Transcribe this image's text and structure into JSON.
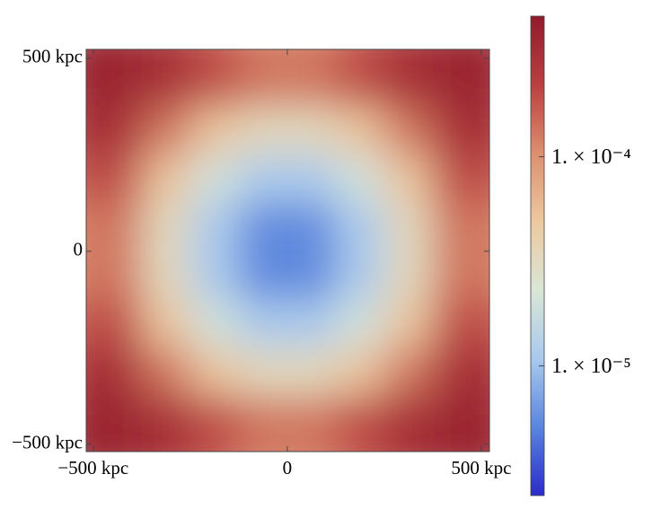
{
  "chart_data": {
    "type": "heatmap",
    "x": [
      -437.5,
      -312.5,
      -187.5,
      -62.5,
      62.5,
      187.5,
      312.5,
      437.5
    ],
    "y": [
      437.5,
      312.5,
      187.5,
      62.5,
      -62.5,
      -187.5,
      -312.5,
      -437.5
    ],
    "z": [
      [
        0.00038,
        0.0003,
        0.00019,
        0.00013,
        0.00013,
        0.00019,
        0.0003,
        0.00038
      ],
      [
        0.0003,
        0.00013,
        5.2e-05,
        3.3e-05,
        3.3e-05,
        5.2e-05,
        0.00013,
        0.0003
      ],
      [
        0.00019,
        5.2e-05,
        2e-05,
        1.1e-05,
        1.1e-05,
        2e-05,
        5.2e-05,
        0.00019
      ],
      [
        0.00013,
        3.3e-05,
        1.1e-05,
        5.4e-06,
        5.4e-06,
        1.1e-05,
        3.3e-05,
        0.00013
      ],
      [
        0.00013,
        3.3e-05,
        1.1e-05,
        5.4e-06,
        5.4e-06,
        1.1e-05,
        3.3e-05,
        0.00013
      ],
      [
        0.00019,
        5.2e-05,
        2e-05,
        1.1e-05,
        1.1e-05,
        2e-05,
        5.2e-05,
        0.00019
      ],
      [
        0.0003,
        0.00013,
        5.2e-05,
        3.3e-05,
        3.3e-05,
        5.2e-05,
        0.00013,
        0.0003
      ],
      [
        0.00038,
        0.0003,
        0.00019,
        0.00013,
        0.00013,
        0.00019,
        0.0003,
        0.00038
      ]
    ],
    "xlim": [
      -518,
      521
    ],
    "ylim": [
      -519,
      523
    ],
    "xticks": [
      {
        "value": -500,
        "label": "−500 kpc"
      },
      0,
      {
        "value": 500,
        "label": "500 kpc"
      }
    ],
    "yticks": [
      {
        "value": -500,
        "label": "−500 kpc"
      },
      0,
      {
        "value": 500,
        "label": "500 kpc"
      }
    ],
    "colorbar": {
      "log": true,
      "clim": [
        2.4e-06,
        0.00047
      ],
      "ticks": [
        {
          "value": 0.0001,
          "label": "1. × 10⁻⁴"
        },
        {
          "value": 1e-05,
          "label": "1. × 10⁻⁵"
        }
      ]
    },
    "colormap": [
      "#2b2bc8",
      "#5a85dd",
      "#a9c9ec",
      "#d9e6d6",
      "#ecc9a0",
      "#dc8f6f",
      "#b84040",
      "#8f1c2c"
    ]
  }
}
